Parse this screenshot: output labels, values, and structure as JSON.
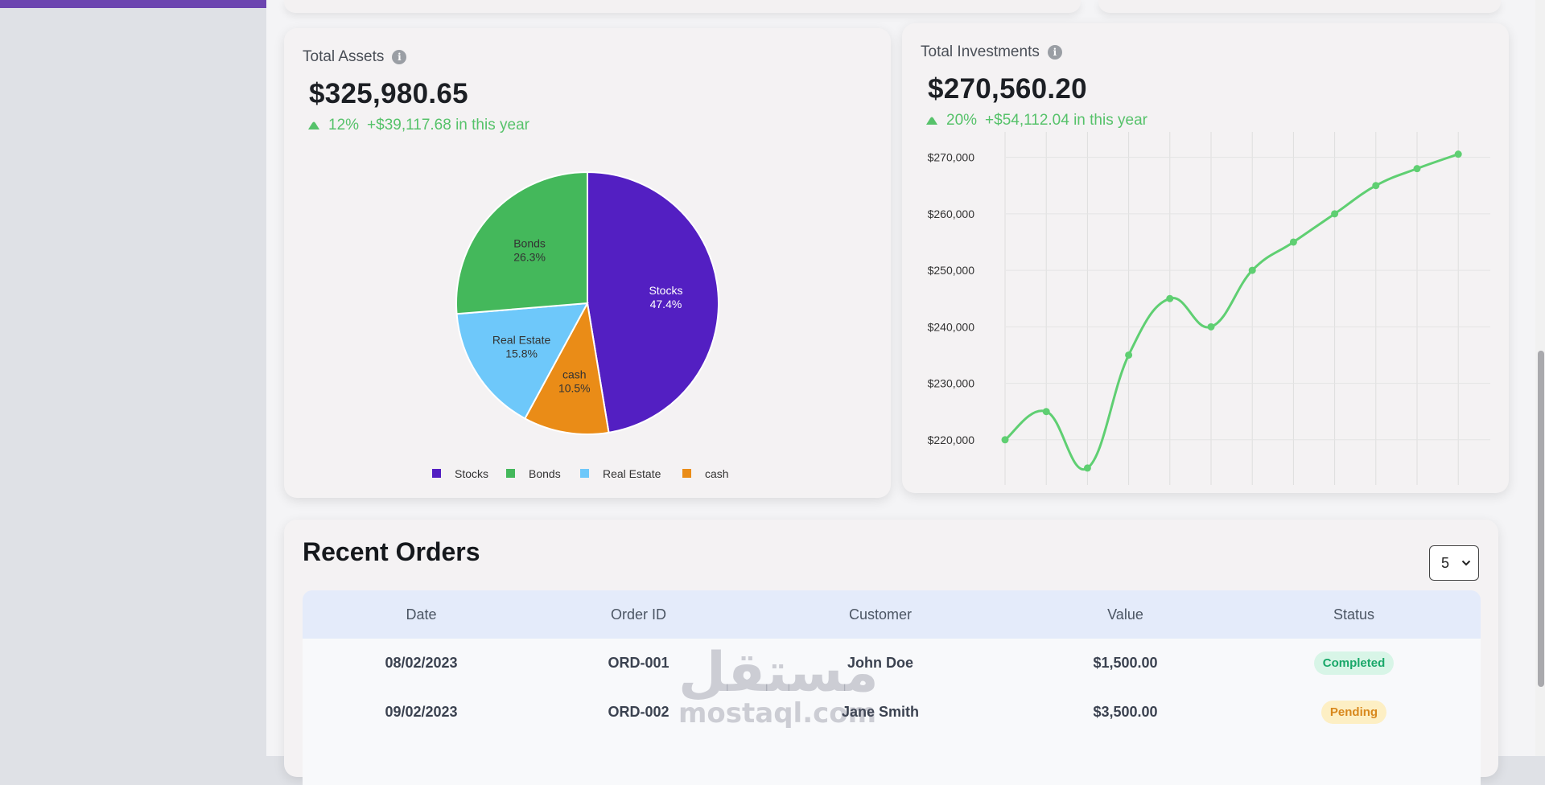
{
  "assets": {
    "title": "Total Assets",
    "amount": "$325,980.65",
    "growth_pct": "12%",
    "growth_text": "+$39,117.68 in this year",
    "accent": "#56c26a",
    "pie": {
      "type": "pie",
      "slices": [
        {
          "label": "Stocks",
          "percent_label": "47.4%",
          "value": 47.4,
          "color": "#531fc2",
          "text_color": "#ffffff"
        },
        {
          "label": "cash",
          "percent_label": "10.5%",
          "value": 10.5,
          "color": "#ea8c17",
          "text_color": "#333333"
        },
        {
          "label": "Real Estate",
          "percent_label": "15.8%",
          "value": 15.8,
          "color": "#6ec8fa",
          "text_color": "#333333"
        },
        {
          "label": "Bonds",
          "percent_label": "26.3%",
          "value": 26.3,
          "color": "#44b85b",
          "text_color": "#333333"
        }
      ],
      "legend": [
        {
          "label": "Stocks",
          "color": "#531fc2"
        },
        {
          "label": "Bonds",
          "color": "#44b85b"
        },
        {
          "label": "Real Estate",
          "color": "#6ec8fa"
        },
        {
          "label": "cash",
          "color": "#ea8c17"
        }
      ]
    }
  },
  "investments": {
    "title": "Total Investments",
    "amount": "$270,560.20",
    "growth_pct": "20%",
    "growth_text": "+$54,112.04 in this year"
  },
  "chart_data": {
    "type": "line",
    "title": "",
    "xlabel": "",
    "ylabel": "",
    "values": [
      220000,
      225000,
      215000,
      235000,
      245000,
      240000,
      250000,
      255000,
      260000,
      265000,
      268000,
      270560.2
    ],
    "ylim": [
      212000,
      274500
    ],
    "yticks": [
      220000,
      230000,
      240000,
      250000,
      260000,
      270000
    ],
    "ytick_labels": [
      "$220,000",
      "$230,000",
      "$240,000",
      "$250,000",
      "$260,000",
      "$270,000"
    ],
    "color": "#5fcf72",
    "grid": true,
    "legend": "none"
  },
  "orders": {
    "title": "Recent Orders",
    "rows_per_page": "5",
    "columns": [
      "Date",
      "Order ID",
      "Customer",
      "Value",
      "Status"
    ],
    "rows": [
      {
        "date": "08/02/2023",
        "id": "ORD-001",
        "customer": "John Doe",
        "value": "$1,500.00",
        "status": "Completed",
        "status_bg": "#d8f5e7",
        "status_color": "#1aa86a"
      },
      {
        "date": "09/02/2023",
        "id": "ORD-002",
        "customer": "Jane Smith",
        "value": "$3,500.00",
        "status": "Pending",
        "status_bg": "#fdefc4",
        "status_color": "#d8881d"
      }
    ]
  },
  "watermark": {
    "arabic": "مستقل",
    "latin": "mostaql.com"
  }
}
